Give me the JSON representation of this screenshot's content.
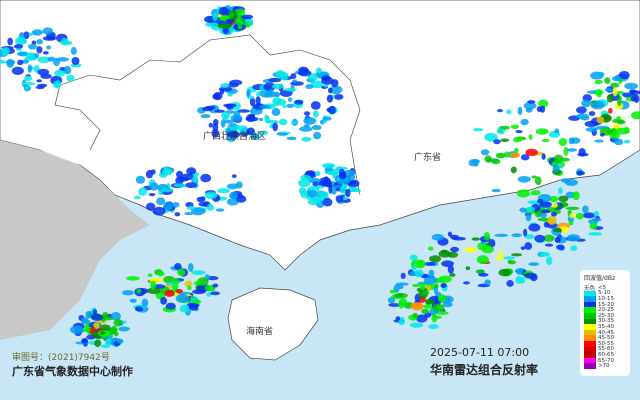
{
  "map_labels": {
    "guangxi": "广西壮族自治区",
    "guangdong": "广东省",
    "hainan": "海南省"
  },
  "footer": {
    "approval": "审图号：(2021)7942号",
    "producer": "广东省气象数据中心制作",
    "timestamp": "2025-07-11 07:00",
    "product": "华南雷达组合反射率"
  },
  "legend": {
    "title": "回波值/dBz",
    "none_label": "无色",
    "none_range": "<5",
    "items": [
      {
        "range": "5-10",
        "color": "#00e8e8"
      },
      {
        "range": "10-15",
        "color": "#00a0f5"
      },
      {
        "range": "15-20",
        "color": "#0030f0"
      },
      {
        "range": "20-25",
        "color": "#00f000"
      },
      {
        "range": "25-30",
        "color": "#00c800"
      },
      {
        "range": "30-35",
        "color": "#008c00"
      },
      {
        "range": "35-40",
        "color": "#ffff00"
      },
      {
        "range": "40-45",
        "color": "#e6c000"
      },
      {
        "range": "45-50",
        "color": "#ff9000"
      },
      {
        "range": "50-55",
        "color": "#ff0000"
      },
      {
        "range": "55-60",
        "color": "#d00000"
      },
      {
        "range": "60-65",
        "color": "#c00000"
      },
      {
        "range": "65-70",
        "color": "#ff00f0"
      },
      {
        "range": ">70",
        "color": "#9600b4"
      }
    ]
  },
  "colors": {
    "sea": "#c9e6f7",
    "land": "#ffffff",
    "foreign_land": "#c8c8c8"
  }
}
